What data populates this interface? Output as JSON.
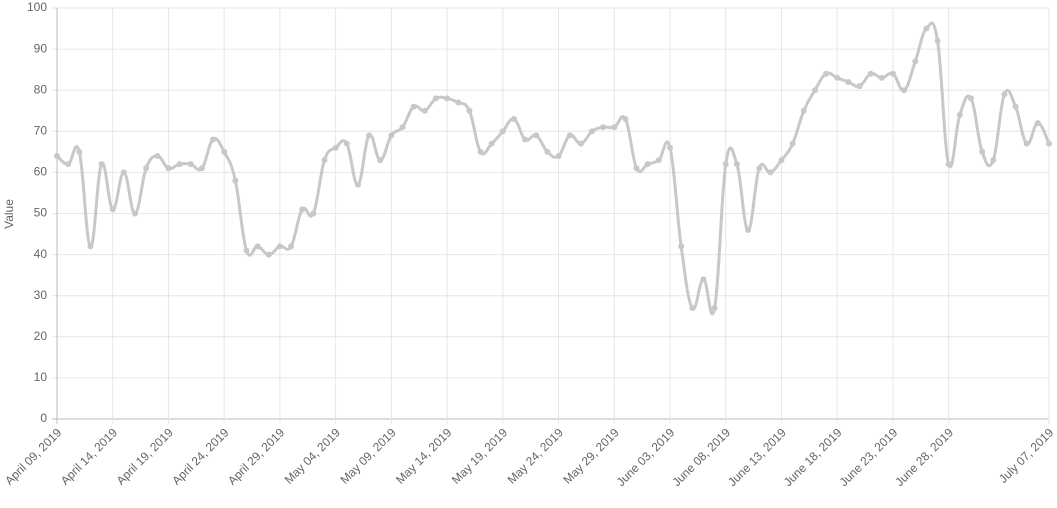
{
  "chart_data": {
    "type": "line",
    "y_label": "Value",
    "color": "#c8c8c8",
    "grid": true,
    "categories": [
      "April 09, 2019",
      null,
      null,
      null,
      null,
      "April 14, 2019",
      null,
      null,
      null,
      null,
      "April 19, 2019",
      null,
      null,
      null,
      null,
      "April 24, 2019",
      null,
      null,
      null,
      null,
      "April 29, 2019",
      null,
      null,
      null,
      null,
      "May 04, 2019",
      null,
      null,
      null,
      null,
      "May 09, 2019",
      null,
      null,
      null,
      null,
      "May 14, 2019",
      null,
      null,
      null,
      null,
      "May 19, 2019",
      null,
      null,
      null,
      null,
      "May 24, 2019",
      null,
      null,
      null,
      null,
      "May 29, 2019",
      null,
      null,
      null,
      null,
      "June 03, 2019",
      null,
      null,
      null,
      null,
      "June 08, 2019",
      null,
      null,
      null,
      null,
      "June 13, 2019",
      null,
      null,
      null,
      null,
      "June 18, 2019",
      null,
      null,
      null,
      null,
      "June 23, 2019",
      null,
      null,
      null,
      null,
      "June 28, 2019",
      null,
      null,
      null,
      null,
      null,
      null,
      null,
      null,
      "July 07, 2019"
    ],
    "values": [
      64,
      62,
      65,
      42,
      62,
      51,
      60,
      50,
      61,
      64,
      61,
      62,
      62,
      61,
      68,
      65,
      58,
      41,
      42,
      40,
      42,
      42,
      51,
      50,
      63,
      66,
      67,
      57,
      69,
      63,
      69,
      71,
      76,
      75,
      78,
      78,
      77,
      75,
      65,
      67,
      70,
      73,
      68,
      69,
      65,
      64,
      69,
      67,
      70,
      71,
      71,
      73,
      61,
      62,
      63,
      66,
      42,
      27,
      34,
      27,
      62,
      62,
      46,
      61,
      60,
      63,
      67,
      75,
      80,
      84,
      83,
      82,
      81,
      84,
      83,
      84,
      80,
      87,
      95,
      92,
      62,
      74,
      78,
      65,
      63,
      79,
      76,
      67,
      72,
      67
    ],
    "ylim": [
      0,
      100
    ],
    "yticks": [
      0,
      10,
      20,
      30,
      40,
      50,
      60,
      70,
      80,
      90,
      100
    ]
  }
}
